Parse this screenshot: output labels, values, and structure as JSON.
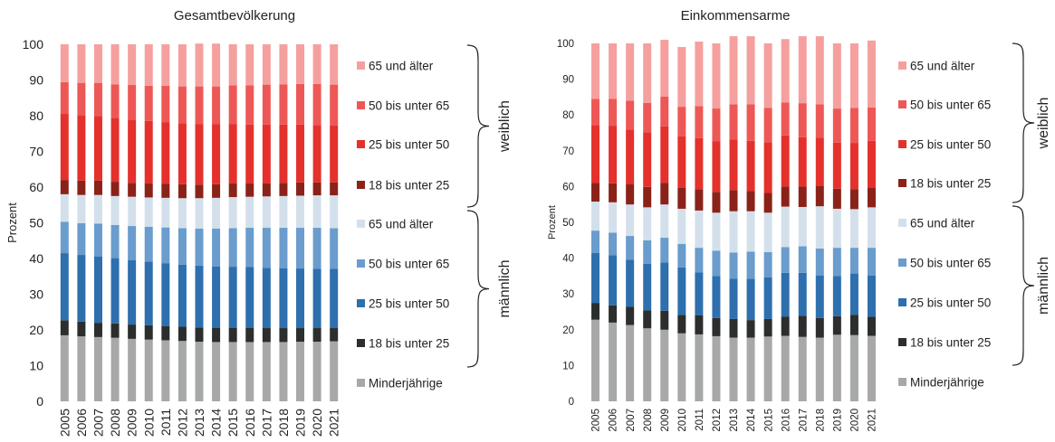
{
  "colors": {
    "minor": "#a7a9a8",
    "m18": "#2b2e2d",
    "m25": "#2e6fae",
    "m50": "#6a9ccd",
    "m65": "#d3e0ec",
    "w18": "#8b2219",
    "w25": "#e4312c",
    "w50": "#ed5856",
    "w65": "#f5a09e",
    "brace": "#222222"
  },
  "chart_data": [
    {
      "type": "bar",
      "stacked": true,
      "title": "Gesamtbevölkerung",
      "ylabel": "Prozent",
      "xlabel": "",
      "ylim": [
        0,
        100
      ],
      "yticks": [
        "0",
        "10",
        "20",
        "30",
        "40",
        "50",
        "60",
        "70",
        "80",
        "90",
        "100"
      ],
      "categories": [
        "2005",
        "2006",
        "2007",
        "2008",
        "2009",
        "2010",
        "2011",
        "2012",
        "2013",
        "2014",
        "2015",
        "2016",
        "2017",
        "2018",
        "2019",
        "2020",
        "2021"
      ],
      "group_labels": {
        "female": "weiblich",
        "male": "männlich"
      },
      "series": [
        {
          "key": "minor",
          "name": "Minderjährige",
          "values": [
            18.5,
            18.2,
            18.0,
            17.8,
            17.5,
            17.3,
            17.1,
            16.9,
            16.7,
            16.6,
            16.6,
            16.6,
            16.6,
            16.6,
            16.7,
            16.7,
            16.8
          ]
        },
        {
          "key": "m18",
          "name": "18 bis unter 25",
          "values": [
            4.2,
            4.1,
            4.0,
            4.0,
            4.0,
            4.0,
            4.0,
            4.0,
            4.0,
            4.0,
            4.0,
            4.0,
            3.9,
            3.9,
            3.8,
            3.8,
            3.7
          ]
        },
        {
          "key": "m25",
          "name": "25 bis unter 50",
          "values": [
            18.8,
            18.7,
            18.6,
            18.3,
            18.0,
            17.8,
            17.6,
            17.4,
            17.3,
            17.2,
            17.1,
            17.0,
            16.9,
            16.8,
            16.7,
            16.6,
            16.6
          ]
        },
        {
          "key": "m50",
          "name": "50 bis unter 65",
          "values": [
            8.8,
            8.9,
            9.2,
            9.3,
            9.6,
            9.8,
            10.0,
            10.2,
            10.4,
            10.6,
            10.8,
            11.0,
            11.2,
            11.3,
            11.4,
            11.5,
            11.4
          ]
        },
        {
          "key": "m65",
          "name": "65 und älter",
          "values": [
            7.7,
            7.9,
            8.0,
            8.1,
            8.2,
            8.2,
            8.3,
            8.4,
            8.5,
            8.6,
            8.7,
            8.7,
            8.8,
            8.9,
            9.0,
            9.1,
            9.2
          ]
        },
        {
          "key": "w18",
          "name": "18 bis unter 25",
          "values": [
            4.0,
            4.0,
            4.0,
            4.0,
            3.9,
            3.9,
            3.9,
            3.9,
            3.8,
            3.8,
            3.8,
            3.7,
            3.7,
            3.7,
            3.7,
            3.6,
            3.6
          ]
        },
        {
          "key": "w25",
          "name": "25 bis unter 50",
          "values": [
            18.5,
            18.3,
            18.1,
            17.9,
            17.7,
            17.5,
            17.3,
            17.1,
            17.0,
            16.8,
            16.7,
            16.5,
            16.4,
            16.3,
            16.2,
            16.1,
            16.0
          ]
        },
        {
          "key": "w50",
          "name": "50 bis unter 65",
          "values": [
            8.9,
            9.1,
            9.3,
            9.4,
            9.7,
            9.9,
            10.2,
            10.3,
            10.5,
            10.6,
            10.8,
            11.0,
            11.2,
            11.3,
            11.4,
            11.5,
            11.4
          ]
        },
        {
          "key": "w65",
          "name": "65 und älter",
          "values": [
            10.6,
            10.8,
            10.8,
            11.2,
            11.4,
            11.6,
            11.6,
            11.8,
            12.0,
            12.0,
            11.5,
            11.5,
            11.3,
            11.2,
            11.1,
            11.1,
            11.3
          ]
        }
      ]
    },
    {
      "type": "bar",
      "stacked": true,
      "title": "Einkommensarme",
      "ylabel": "Prozent",
      "xlabel": "",
      "ylim": [
        0,
        100
      ],
      "yticks": [
        "0",
        "10",
        "20",
        "30",
        "40",
        "50",
        "60",
        "70",
        "80",
        "90",
        "100"
      ],
      "categories": [
        "2005",
        "2006",
        "2007",
        "2008",
        "2009",
        "2010",
        "2011",
        "2012",
        "2013",
        "2014",
        "2015",
        "2016",
        "2017",
        "2018",
        "2019",
        "2020",
        "2021"
      ],
      "group_labels": {
        "female": "weiblich",
        "male": "männlich"
      },
      "series": [
        {
          "key": "minor",
          "name": "Minderjährige",
          "values": [
            22.8,
            22.0,
            21.3,
            20.4,
            20.0,
            19.0,
            18.7,
            18.2,
            17.8,
            17.8,
            18.1,
            18.3,
            18.0,
            17.8,
            18.6,
            18.5,
            18.3
          ]
        },
        {
          "key": "m18",
          "name": "18 bis unter 25",
          "values": [
            4.7,
            4.8,
            5.1,
            5.0,
            5.3,
            5.1,
            5.3,
            5.1,
            5.2,
            4.9,
            4.9,
            5.4,
            5.9,
            5.5,
            5.2,
            5.7,
            5.3
          ]
        },
        {
          "key": "m25",
          "name": "25 bis unter 50",
          "values": [
            14.0,
            14.0,
            13.2,
            13.0,
            13.5,
            13.3,
            12.0,
            11.7,
            11.3,
            11.5,
            11.6,
            12.2,
            12.0,
            11.8,
            11.2,
            11.5,
            11.5
          ]
        },
        {
          "key": "m50",
          "name": "50 bis unter 65",
          "values": [
            6.2,
            6.3,
            6.6,
            6.6,
            6.9,
            6.6,
            6.9,
            7.1,
            7.3,
            7.6,
            7.1,
            7.2,
            7.4,
            7.6,
            7.9,
            7.2,
            7.8
          ]
        },
        {
          "key": "m65",
          "name": "65 und älter",
          "values": [
            8.1,
            8.5,
            8.8,
            9.2,
            9.3,
            9.8,
            10.4,
            10.6,
            11.5,
            11.3,
            11.0,
            11.3,
            11.0,
            11.8,
            10.9,
            10.8,
            11.3
          ]
        },
        {
          "key": "w18",
          "name": "18 bis unter 25",
          "values": [
            5.2,
            5.3,
            5.6,
            5.7,
            6.0,
            5.8,
            5.9,
            5.8,
            5.9,
            5.6,
            5.5,
            5.6,
            5.7,
            5.7,
            5.6,
            5.6,
            5.5
          ]
        },
        {
          "key": "w25",
          "name": "25 bis unter 50",
          "values": [
            16.2,
            16.1,
            15.3,
            15.3,
            15.8,
            14.4,
            14.3,
            14.1,
            14.2,
            14.1,
            14.2,
            14.3,
            13.8,
            13.4,
            12.9,
            12.9,
            13.1
          ]
        },
        {
          "key": "w50",
          "name": "50 bis unter 65",
          "values": [
            7.3,
            7.5,
            8.1,
            8.2,
            8.3,
            8.3,
            9.0,
            9.2,
            9.8,
            10.2,
            9.6,
            9.2,
            9.5,
            9.4,
            9.5,
            9.8,
            9.3
          ]
        },
        {
          "key": "w65",
          "name": "65 und älter",
          "values": [
            15.5,
            15.5,
            16.0,
            16.6,
            15.9,
            16.7,
            18.0,
            18.2,
            19.0,
            19.0,
            18.0,
            17.7,
            18.7,
            19.0,
            18.2,
            18.0,
            18.7
          ]
        }
      ]
    }
  ]
}
